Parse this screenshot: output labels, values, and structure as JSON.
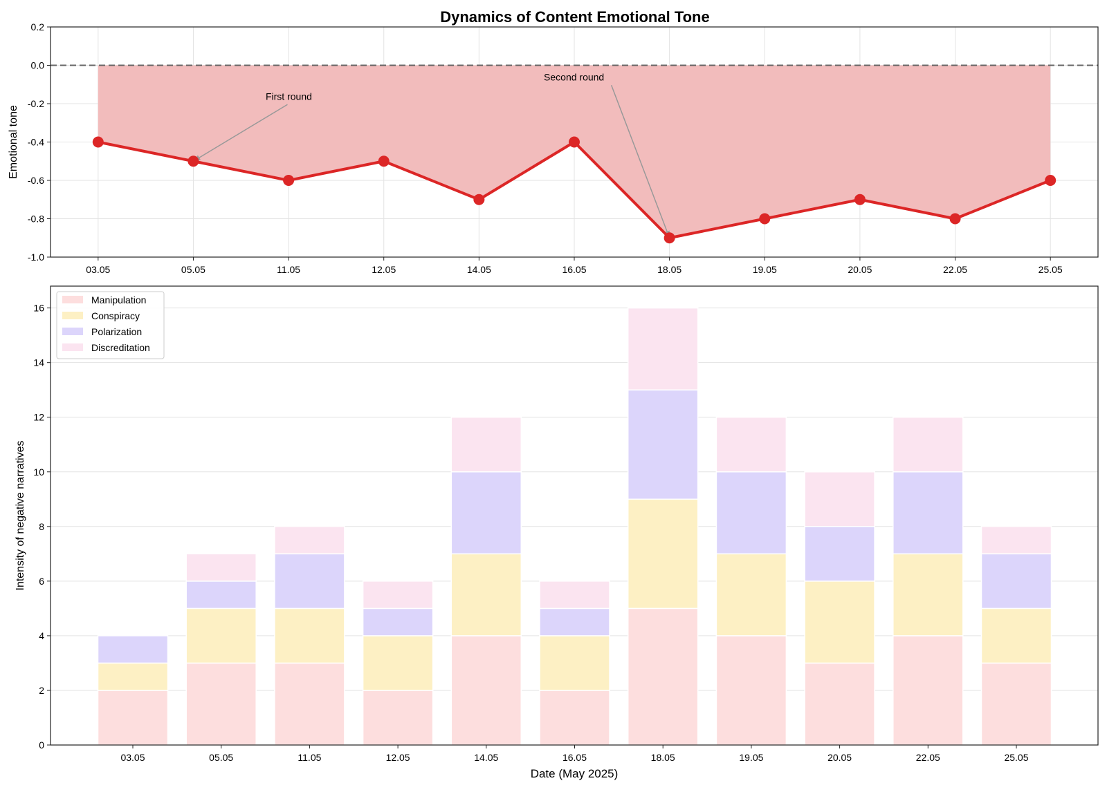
{
  "figure_title": "Dynamics of Content Emotional Tone",
  "colors": {
    "tone_line": "#dc2626",
    "tone_fill": "#f2bcbc",
    "zero_line": "#666666",
    "grid": "#e3e3e3",
    "annotation_arrow": "#999999",
    "bar_edge": "#ffffff"
  },
  "chart_data": [
    {
      "type": "line",
      "title": "Dynamics of Content Emotional Tone",
      "xlabel": "",
      "ylabel": "Emotional tone",
      "categories": [
        "03.05",
        "05.05",
        "11.05",
        "12.05",
        "14.05",
        "16.05",
        "18.05",
        "19.05",
        "20.05",
        "22.05",
        "25.05"
      ],
      "values": [
        -0.4,
        -0.5,
        -0.6,
        -0.5,
        -0.7,
        -0.4,
        -0.9,
        -0.8,
        -0.7,
        -0.8,
        -0.6
      ],
      "ylim": [
        -1.0,
        0.2
      ],
      "yticks": [
        0.2,
        0.0,
        -0.2,
        -0.4,
        -0.6,
        -0.8,
        -1.0
      ],
      "ytick_labels": [
        "0.2",
        "0.0",
        "-0.2",
        "-0.4",
        "-0.6",
        "-0.8",
        "-1.0"
      ],
      "reference_line": 0.0,
      "fill_to_zero": true,
      "grid": true,
      "annotations": [
        {
          "text": "First round",
          "target": "05.05",
          "target_value": -0.5
        },
        {
          "text": "Second round",
          "target": "18.05",
          "target_value": -0.9
        }
      ]
    },
    {
      "type": "bar",
      "stacked": true,
      "title": "",
      "xlabel": "Date (May 2025)",
      "ylabel": "Intensity of negative narratives",
      "categories": [
        "03.05",
        "05.05",
        "11.05",
        "12.05",
        "14.05",
        "16.05",
        "18.05",
        "19.05",
        "20.05",
        "22.05",
        "25.05"
      ],
      "series": [
        {
          "name": "Manipulation",
          "color": "#fddede",
          "values": [
            2,
            3,
            3,
            2,
            4,
            2,
            5,
            4,
            3,
            4,
            3
          ]
        },
        {
          "name": "Conspiracy",
          "color": "#fdf0c4",
          "values": [
            1,
            2,
            2,
            2,
            3,
            2,
            4,
            3,
            3,
            3,
            2
          ]
        },
        {
          "name": "Polarization",
          "color": "#dcd5fb",
          "values": [
            1,
            1,
            2,
            1,
            3,
            1,
            4,
            3,
            2,
            3,
            2
          ]
        },
        {
          "name": "Discreditation",
          "color": "#fbe4f0",
          "values": [
            0,
            1,
            1,
            1,
            2,
            1,
            3,
            2,
            2,
            2,
            1
          ]
        }
      ],
      "ylim": [
        0,
        16.8
      ],
      "yticks": [
        0,
        2,
        4,
        6,
        8,
        10,
        12,
        14,
        16
      ],
      "legend_position": "top-left",
      "grid": true
    }
  ]
}
